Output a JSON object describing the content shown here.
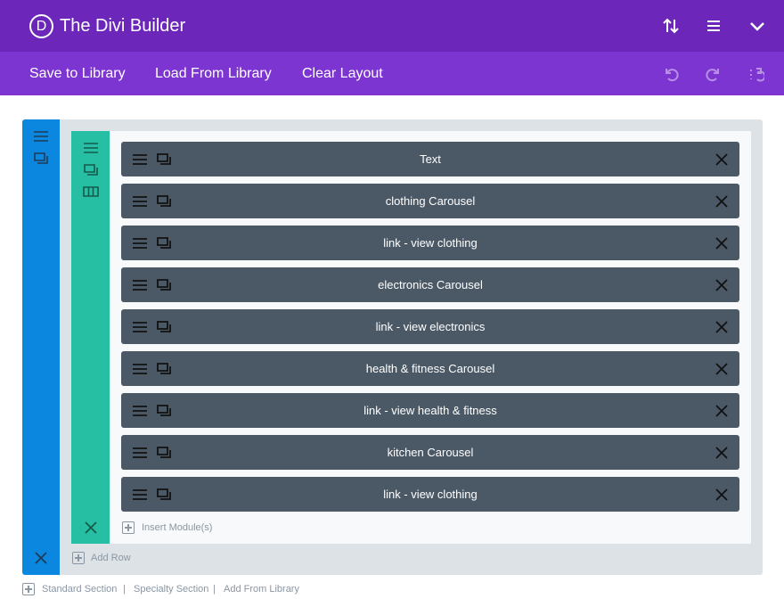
{
  "header": {
    "logo": "D",
    "title": "The Divi Builder",
    "icons": [
      "sort-arrows-icon",
      "menu-icon",
      "chevron-down-icon"
    ]
  },
  "toolbar": {
    "save": "Save to Library",
    "load": "Load From Library",
    "clear": "Clear Layout",
    "icons": [
      "undo-icon",
      "redo-icon",
      "history-icon"
    ]
  },
  "modules": [
    {
      "label": "Text"
    },
    {
      "label": "clothing Carousel"
    },
    {
      "label": "link - view clothing"
    },
    {
      "label": "electronics Carousel"
    },
    {
      "label": "link - view electronics"
    },
    {
      "label": "health & fitness Carousel"
    },
    {
      "label": "link - view health & fitness"
    },
    {
      "label": "kitchen Carousel"
    },
    {
      "label": "link - view clothing"
    }
  ],
  "row": {
    "insert": "Insert Module(s)"
  },
  "section": {
    "add_row": "Add Row"
  },
  "footer": {
    "standard": "Standard Section",
    "sep": "|",
    "specialty": "Specialty Section",
    "library": "Add From Library"
  },
  "colors": {
    "header": "#6c27ba",
    "toolbar": "#7d35d2",
    "section": "#0c87e0",
    "row": "#26bfa3",
    "module": "#4b5967"
  }
}
